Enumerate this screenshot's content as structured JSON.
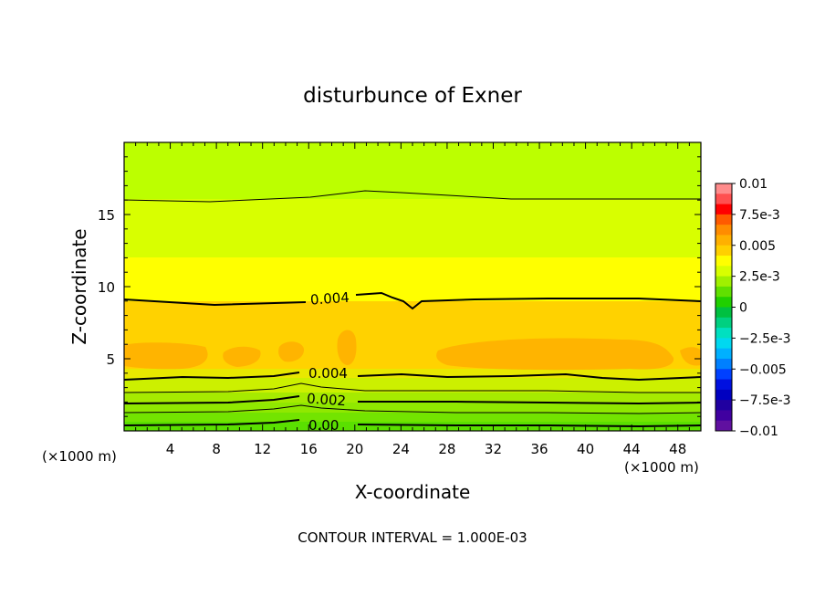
{
  "chart_data": {
    "type": "heatmap",
    "subtype": "filled-contour",
    "title": "disturbunce of Exner",
    "xlabel": "X-coordinate",
    "ylabel": "Z-coordinate",
    "x_unit_label": "(×1000 m)",
    "y_unit_label": "(×1000 m)",
    "xlim": [
      0,
      50
    ],
    "ylim": [
      0,
      20
    ],
    "x_ticks": [
      4,
      8,
      12,
      16,
      20,
      24,
      28,
      32,
      36,
      40,
      44,
      48
    ],
    "y_ticks": [
      5,
      10,
      15
    ],
    "colorbar": {
      "labels": [
        "0.01",
        "7.5e-3",
        "0.005",
        "2.5e-3",
        "0",
        "−2.5e-3",
        "−0.005",
        "−7.5e-3",
        "−0.01"
      ],
      "colors": [
        "#ff8c8c",
        "#ff5050",
        "#ff0000",
        "#ff5a00",
        "#ff8c00",
        "#ffb000",
        "#ffd000",
        "#ffff00",
        "#d8ff00",
        "#a0f000",
        "#60e000",
        "#20d000",
        "#00c040",
        "#00d080",
        "#00e0c0",
        "#00d8f0",
        "#00b0ff",
        "#0080ff",
        "#0040ff",
        "#0010e0",
        "#0000c0",
        "#2000a0",
        "#4000a0",
        "#6010a0"
      ]
    },
    "contour_labels": [
      "0.004",
      "0.004",
      "0.002",
      "0.00"
    ],
    "footer": "CONTOUR INTERVAL = 1.000E-03"
  }
}
